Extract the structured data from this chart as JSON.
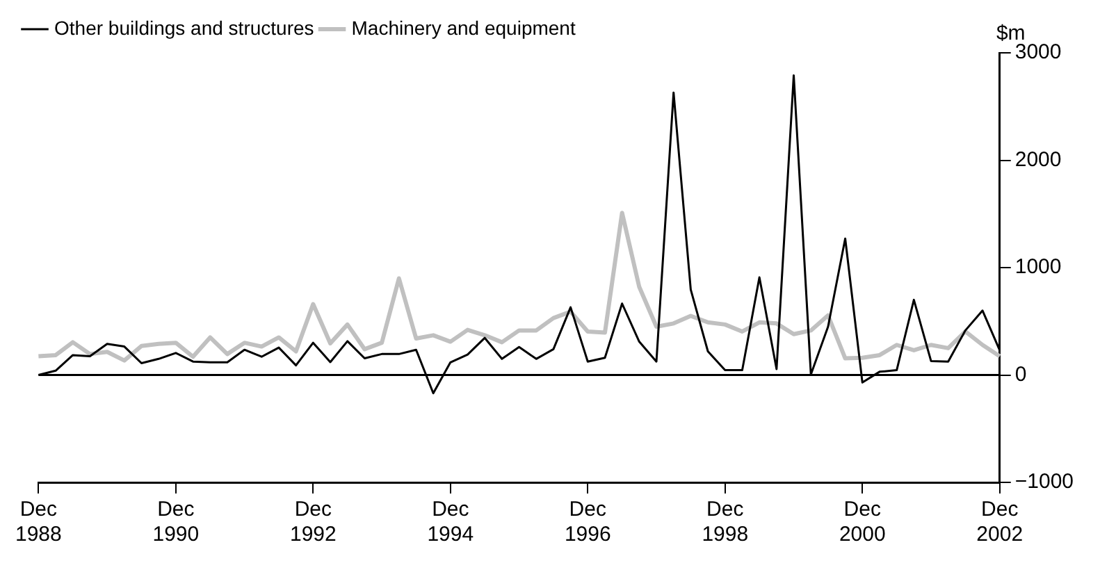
{
  "chart_data": {
    "type": "line",
    "ylabel": "$m",
    "categories": [
      "Dec 1988",
      null,
      null,
      null,
      null,
      null,
      null,
      null,
      "Dec 1990",
      null,
      null,
      null,
      null,
      null,
      null,
      null,
      "Dec 1992",
      null,
      null,
      null,
      null,
      null,
      null,
      null,
      "Dec 1994",
      null,
      null,
      null,
      null,
      null,
      null,
      null,
      "Dec 1996",
      null,
      null,
      null,
      null,
      null,
      null,
      null,
      "Dec 1998",
      null,
      null,
      null,
      null,
      null,
      null,
      null,
      "Dec 2000",
      null,
      null,
      null,
      null,
      null,
      null,
      null,
      "Dec 2002"
    ],
    "series": [
      {
        "name": "Other buildings and structures",
        "color": "#000000",
        "values": [
          0,
          40,
          185,
          175,
          290,
          265,
          110,
          150,
          205,
          125,
          118,
          118,
          235,
          170,
          255,
          90,
          300,
          120,
          315,
          155,
          195,
          195,
          235,
          -170,
          118,
          190,
          345,
          150,
          260,
          150,
          240,
          630,
          125,
          160,
          665,
          310,
          125,
          2630,
          795,
          220,
          45,
          45,
          910,
          55,
          2790,
          5,
          450,
          1270,
          -70,
          30,
          45,
          700,
          130,
          125,
          415,
          600,
          230
        ]
      },
      {
        "name": "Machinery and equipment",
        "color": "#c0c0c0",
        "values": [
          175,
          185,
          305,
          195,
          215,
          135,
          270,
          290,
          300,
          170,
          350,
          195,
          300,
          265,
          350,
          220,
          660,
          295,
          470,
          240,
          300,
          900,
          340,
          370,
          310,
          420,
          370,
          305,
          415,
          415,
          530,
          590,
          405,
          395,
          1510,
          820,
          450,
          480,
          550,
          490,
          470,
          405,
          490,
          480,
          380,
          415,
          555,
          155,
          160,
          185,
          280,
          230,
          280,
          250,
          405,
          280,
          175
        ]
      }
    ],
    "ylim": [
      -1000,
      3000
    ],
    "yticks": [
      {
        "value": -1000,
        "label": "−1000"
      },
      0,
      1000,
      2000,
      3000
    ],
    "ref_lines": [
      {
        "axis": "y",
        "value": 0,
        "color": "#000000"
      }
    ],
    "grid": false,
    "legend": "top left",
    "marker": "none",
    "line_style": "solid"
  }
}
